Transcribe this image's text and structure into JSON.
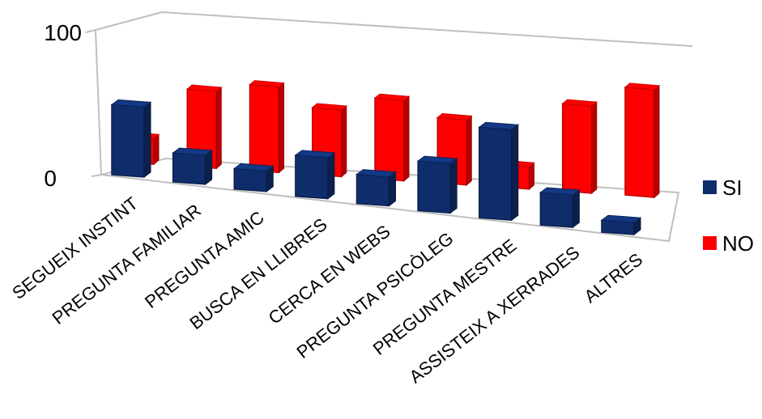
{
  "chart_data": {
    "type": "bar",
    "title": "",
    "xlabel": "",
    "ylabel": "",
    "ylim": [
      0,
      100
    ],
    "yticks": [
      "0",
      "100"
    ],
    "categories": [
      "SEGUEIX INSTINT",
      "PREGUNTA FAMILIAR",
      "PREGUNTA AMIC",
      "BUSCA EN LLIBRES",
      "CERCA EN WEBS",
      "PREGUNTA PSICÒLEG",
      "PREGUNTA MESTRE",
      "ASSISTEIX A XERRADES",
      "ALTRES"
    ],
    "series": [
      {
        "name": "SI",
        "color": "#0f2d6b",
        "values": [
          41,
          17,
          12,
          24,
          17,
          29,
          53,
          19,
          7
        ]
      },
      {
        "name": "NO",
        "color": "#ff0000",
        "values": [
          15,
          45,
          50,
          39,
          47,
          38,
          13,
          51,
          63
        ]
      }
    ],
    "legend": "right",
    "grid": false
  }
}
